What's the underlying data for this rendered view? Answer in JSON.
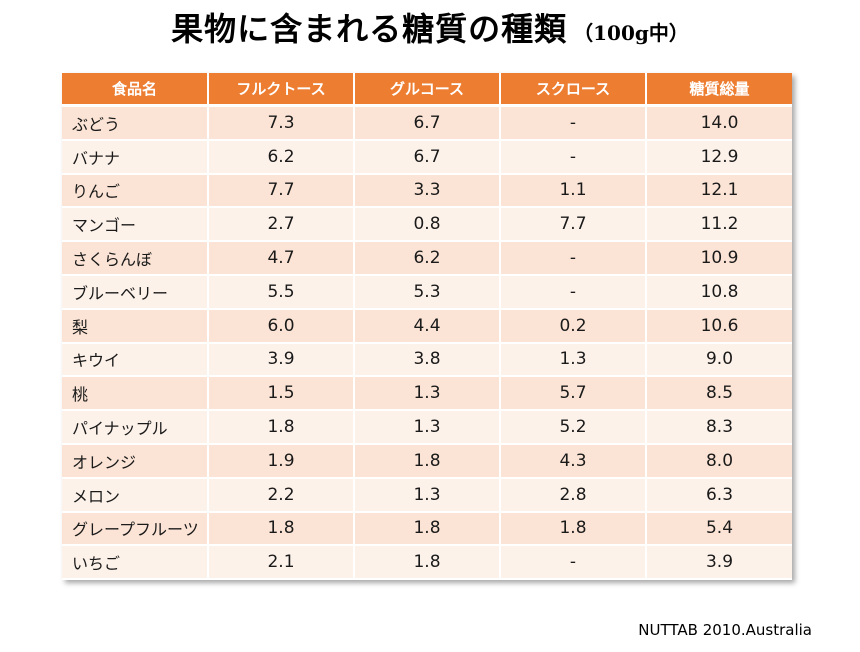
{
  "title": {
    "main": "果物に含まれる糖質の種類",
    "sub": "（100g中）"
  },
  "source": "NUTTAB 2010.Australia",
  "colors": {
    "header_bg": "#ed7d31",
    "row_odd": "#fbe4d5",
    "row_even": "#fdf2ea"
  },
  "chart_data": {
    "type": "table",
    "columns": [
      "食品名",
      "フルクトース",
      "グルコース",
      "スクロース",
      "糖質総量"
    ],
    "rows": [
      [
        "ぶどう",
        "7.3",
        "6.7",
        "-",
        "14.0"
      ],
      [
        "バナナ",
        "6.2",
        "6.7",
        "-",
        "12.9"
      ],
      [
        "りんご",
        "7.7",
        "3.3",
        "1.1",
        "12.1"
      ],
      [
        "マンゴー",
        "2.7",
        "0.8",
        "7.7",
        "11.2"
      ],
      [
        "さくらんぼ",
        "4.7",
        "6.2",
        "-",
        "10.9"
      ],
      [
        "ブルーベリー",
        "5.5",
        "5.3",
        "-",
        "10.8"
      ],
      [
        "梨",
        "6.0",
        "4.4",
        "0.2",
        "10.6"
      ],
      [
        "キウイ",
        "3.9",
        "3.8",
        "1.3",
        "9.0"
      ],
      [
        "桃",
        "1.5",
        "1.3",
        "5.7",
        "8.5"
      ],
      [
        "パイナップル",
        "1.8",
        "1.3",
        "5.2",
        "8.3"
      ],
      [
        "オレンジ",
        "1.9",
        "1.8",
        "4.3",
        "8.0"
      ],
      [
        "メロン",
        "2.2",
        "1.3",
        "2.8",
        "6.3"
      ],
      [
        "グレープフルーツ",
        "1.8",
        "1.8",
        "1.8",
        "5.4"
      ],
      [
        "いちご",
        "2.1",
        "1.8",
        "-",
        "3.9"
      ]
    ]
  }
}
